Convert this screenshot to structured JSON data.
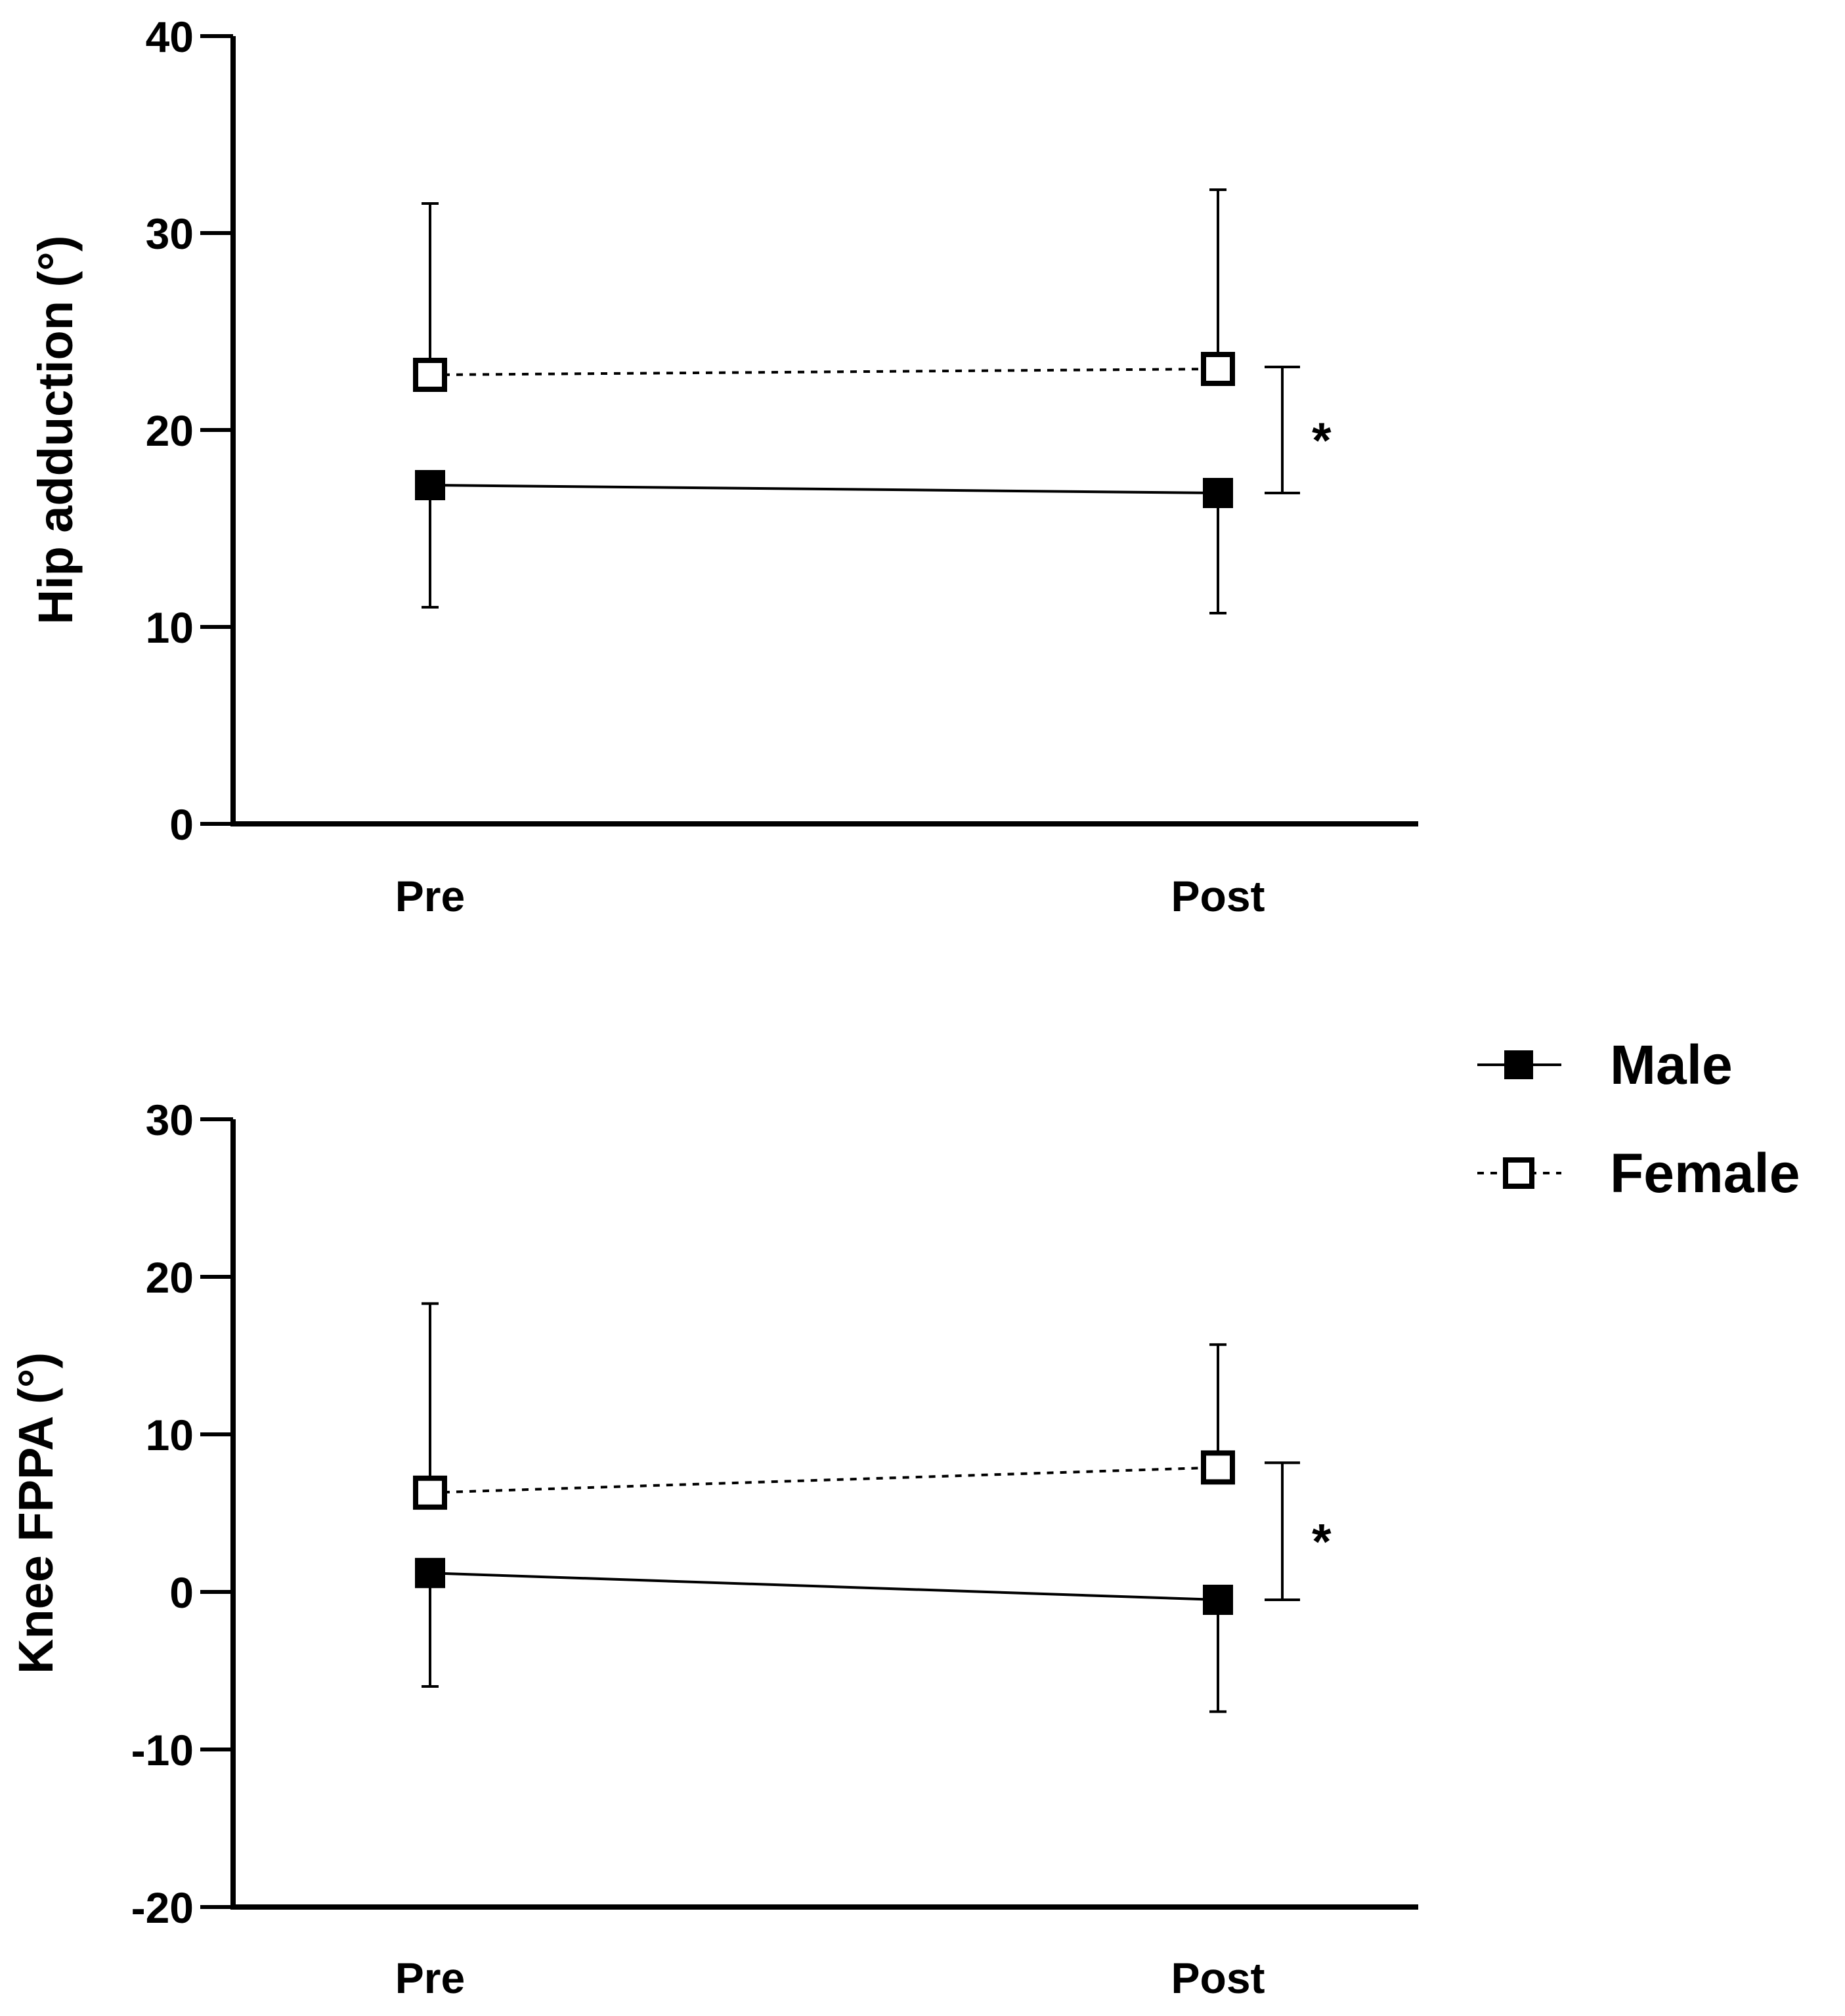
{
  "chart_data": [
    {
      "type": "line",
      "title": "",
      "xlabel": "",
      "ylabel": "Hip adduction (°)",
      "categories": [
        "Pre",
        "Post"
      ],
      "ylim": [
        0,
        40
      ],
      "yticks": [
        0,
        10,
        20,
        30,
        40
      ],
      "ytick_labels": [
        "0",
        "10",
        "20",
        "30",
        "40"
      ],
      "series": [
        {
          "name": "Male",
          "values": [
            17.2,
            16.8
          ],
          "error_lower": [
            11.0,
            10.7
          ],
          "error_upper": [
            17.2,
            16.8
          ],
          "marker": "filled-square",
          "line": "solid"
        },
        {
          "name": "Female",
          "values": [
            22.8,
            23.1
          ],
          "error_lower": [
            22.8,
            23.1
          ],
          "error_upper": [
            31.5,
            32.2
          ],
          "marker": "open-square",
          "line": "dashed"
        }
      ],
      "significance": {
        "label": "*",
        "from": 16.8,
        "to": 23.2
      }
    },
    {
      "type": "line",
      "title": "",
      "xlabel": "",
      "ylabel": "Knee FPPA (°)",
      "categories": [
        "Pre",
        "Post"
      ],
      "ylim": [
        -20,
        30
      ],
      "yticks": [
        -20,
        -10,
        0,
        10,
        20,
        30
      ],
      "ytick_labels": [
        "-20",
        "-10",
        "0",
        "10",
        "20",
        "30"
      ],
      "series": [
        {
          "name": "Male",
          "values": [
            1.2,
            -0.5
          ],
          "error_lower": [
            -6.0,
            -7.6
          ],
          "error_upper": [
            1.2,
            -0.5
          ],
          "marker": "filled-square",
          "line": "solid"
        },
        {
          "name": "Female",
          "values": [
            6.3,
            7.9
          ],
          "error_lower": [
            6.3,
            7.9
          ],
          "error_upper": [
            18.3,
            15.7
          ],
          "marker": "open-square",
          "line": "dashed"
        }
      ],
      "significance": {
        "label": "*",
        "from": -0.5,
        "to": 8.2
      }
    }
  ],
  "legend": {
    "placement": "right",
    "items": [
      {
        "label": "Male",
        "marker": "filled-square",
        "line": "solid"
      },
      {
        "label": "Female",
        "marker": "open-square",
        "line": "dashed"
      }
    ]
  },
  "colors": {
    "ink": "#000000",
    "background": "#ffffff"
  }
}
